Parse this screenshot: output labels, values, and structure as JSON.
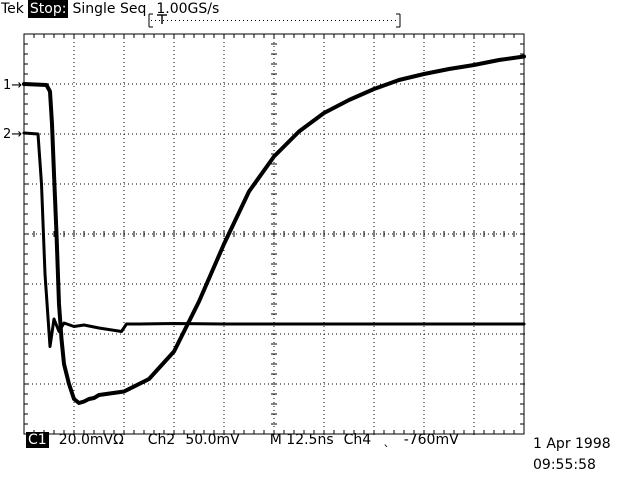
{
  "header": {
    "brand": "Tek",
    "status": "Stop:",
    "mode": "Single Seq",
    "sample_rate": "1.00GS/s"
  },
  "footer": {
    "channel1_badge": "C1",
    "channel1_scale": "20.0mVΩ",
    "channel2_label": "Ch2",
    "channel2_scale": "50.0mV",
    "timebase_label": "M",
    "timebase": "12.5ns",
    "trigger_channel": "Ch4",
    "trigger_slope_icon": "falling-edge-icon",
    "trigger_slope_glyph": "ˎ",
    "trigger_level": "-760mV"
  },
  "timestamp": {
    "date": "1 Apr 1998",
    "time": "09:55:58"
  },
  "channel_markers": [
    {
      "label": "1→"
    },
    {
      "label": "2→"
    }
  ],
  "chart_data": {
    "type": "line",
    "title": "",
    "xlabel": "",
    "ylabel": "",
    "x_divisions": 10,
    "y_divisions": 8,
    "xlim": [
      0,
      10
    ],
    "ylim": [
      -4,
      4
    ],
    "grid": true,
    "series": [
      {
        "x": [
          0,
          0.45,
          0.52,
          0.56,
          0.6,
          0.65,
          0.7,
          0.75,
          0.8,
          0.9,
          1.0,
          1.1,
          1.2,
          1.3,
          1.4,
          1.5,
          2.0,
          2.5,
          3.0,
          3.5,
          4.0,
          4.5,
          5.0,
          5.5,
          6.0,
          6.5,
          7.0,
          7.5,
          8.0,
          8.5,
          9.0,
          9.5,
          10.0
        ],
        "values": [
          3.0,
          2.98,
          2.85,
          2.2,
          1.2,
          0.0,
          -1.4,
          -2.1,
          -2.6,
          -3.0,
          -3.3,
          -3.38,
          -3.35,
          -3.3,
          -3.28,
          -3.22,
          -3.15,
          -2.9,
          -2.35,
          -1.35,
          -0.2,
          0.85,
          1.55,
          2.05,
          2.42,
          2.68,
          2.9,
          3.08,
          3.2,
          3.3,
          3.38,
          3.48,
          3.55
        ]
      },
      {
        "x": [
          0,
          0.28,
          0.35,
          0.42,
          0.52,
          0.6,
          0.7,
          0.8,
          1.0,
          1.2,
          1.5,
          1.95,
          2.05,
          2.3,
          3.0,
          4.0,
          5.0,
          6.0,
          7.0,
          8.0,
          9.0,
          10.0
        ],
        "values": [
          2.02,
          2.0,
          1.0,
          -0.8,
          -2.25,
          -1.7,
          -1.95,
          -1.78,
          -1.85,
          -1.82,
          -1.88,
          -1.95,
          -1.8,
          -1.8,
          -1.79,
          -1.8,
          -1.8,
          -1.8,
          -1.8,
          -1.8,
          -1.8,
          -1.8
        ]
      }
    ]
  }
}
